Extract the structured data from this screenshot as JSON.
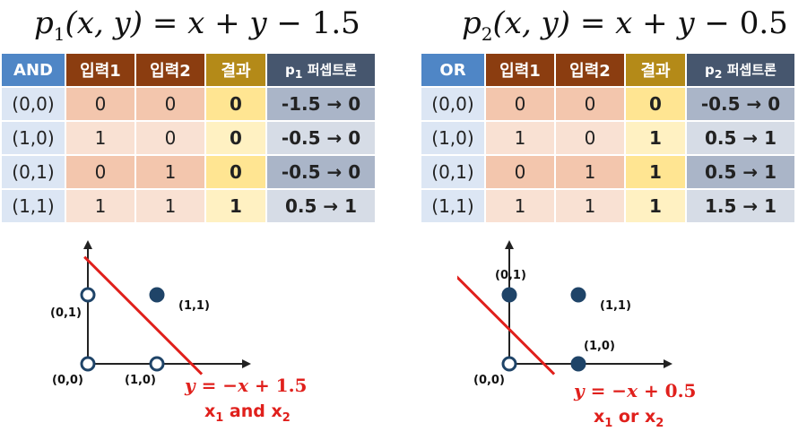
{
  "and_panel": {
    "formula": {
      "p": "p",
      "sub": "1",
      "args": "(x, y) = x + y − ",
      "const": "1.5"
    },
    "table": {
      "headers": [
        "AND",
        "입력1",
        "입력2",
        "결과"
      ],
      "perceptron_header": {
        "p": "p",
        "sub": "1",
        "label": " 퍼셉트론"
      },
      "rows": [
        [
          "(0,0)",
          "0",
          "0",
          "0",
          "-1.5 → 0"
        ],
        [
          "(1,0)",
          "1",
          "0",
          "0",
          "-0.5 → 0"
        ],
        [
          "(0,1)",
          "0",
          "1",
          "0",
          "-0.5 → 0"
        ],
        [
          "(1,1)",
          "1",
          "1",
          "1",
          "0.5 → 1"
        ]
      ]
    },
    "graph": {
      "points": [
        {
          "label": "(0,0)",
          "x": 0,
          "y": 0,
          "filled": false
        },
        {
          "label": "(1,0)",
          "x": 1,
          "y": 0,
          "filled": false
        },
        {
          "label": "(0,1)",
          "x": 0,
          "y": 1,
          "filled": false
        },
        {
          "label": "(1,1)",
          "x": 1,
          "y": 1,
          "filled": true
        }
      ],
      "line": {
        "slope": -1,
        "intercept": 1.5
      },
      "equation": {
        "lhs": "y = −x + ",
        "const": "1.5"
      },
      "caption": {
        "x1": "x",
        "sub1": "1",
        "op": " and ",
        "x2": "x",
        "sub2": "2"
      }
    }
  },
  "or_panel": {
    "formula": {
      "p": "p",
      "sub": "2",
      "args": "(x, y) = x + y − ",
      "const": "0.5"
    },
    "table": {
      "headers": [
        "OR",
        "입력1",
        "입력2",
        "결과"
      ],
      "perceptron_header": {
        "p": "p",
        "sub": "2",
        "label": " 퍼셉트론"
      },
      "rows": [
        [
          "(0,0)",
          "0",
          "0",
          "0",
          "-0.5 → 0"
        ],
        [
          "(1,0)",
          "1",
          "0",
          "1",
          "0.5 → 1"
        ],
        [
          "(0,1)",
          "0",
          "1",
          "1",
          "0.5 → 1"
        ],
        [
          "(1,1)",
          "1",
          "1",
          "1",
          "1.5 → 1"
        ]
      ]
    },
    "graph": {
      "points": [
        {
          "label": "(0,0)",
          "x": 0,
          "y": 0,
          "filled": false
        },
        {
          "label": "(1,0)",
          "x": 1,
          "y": 0,
          "filled": true
        },
        {
          "label": "(0,1)",
          "x": 0,
          "y": 1,
          "filled": true
        },
        {
          "label": "(1,1)",
          "x": 1,
          "y": 1,
          "filled": true
        }
      ],
      "line": {
        "slope": -1,
        "intercept": 0.5
      },
      "equation": {
        "lhs": "y = −x + ",
        "const": "0.5"
      },
      "caption": {
        "x1": "x",
        "sub1": "1",
        "op": " or ",
        "x2": "x",
        "sub2": "2"
      }
    }
  },
  "colors": {
    "line": "#e0201c",
    "point": "#1f4468",
    "axis": "#222222"
  }
}
